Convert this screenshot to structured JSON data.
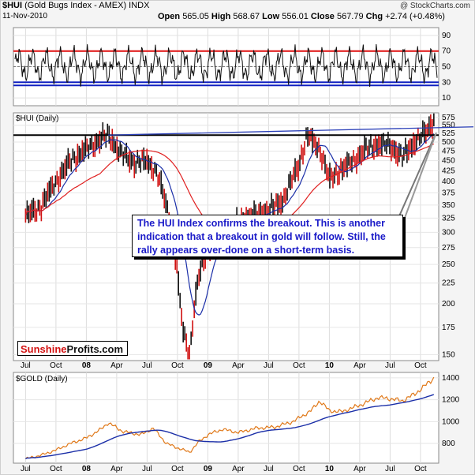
{
  "header": {
    "symbol": "$HUI",
    "name": "(Gold Bugs Index - AMEX) INDX",
    "date": "11-Nov-2010",
    "watermark": "@ StockCharts.com",
    "open_label": "Open",
    "open": "565.05",
    "high_label": "High",
    "high": "568.67",
    "low_label": "Low",
    "low": "556.01",
    "close_label": "Close",
    "close": "567.79",
    "chg_label": "Chg",
    "chg": "+2.74 (+0.48%)"
  },
  "annotation": "The HUI Index confirms the breakout. This is another indication that a breakout in gold will follow. Still, the rally appears over-done on a short-term basis.",
  "logo": {
    "part1": "Sunshine",
    "part2": "Profits.com"
  },
  "colors": {
    "price_up": "#111111",
    "price_down": "#d01010",
    "ma_fast": "#1b2fa8",
    "ma_slow": "#e02020",
    "gold": "#e07818",
    "rsi_upper": "#e01010",
    "rsi_lower": "#1020c0",
    "trend_line": "#2a3fb8",
    "annotation_text": "#1a1ac8"
  },
  "x_ticks": [
    "Jul",
    "Oct",
    "08",
    "Apr",
    "Jul",
    "Oct",
    "09",
    "Apr",
    "Jul",
    "Oct",
    "10",
    "Apr",
    "Jul",
    "Oct"
  ],
  "chart_data": [
    {
      "type": "line",
      "panel": "rsi",
      "title": "",
      "ylim": [
        0,
        100
      ],
      "y_ticks": [
        10,
        30,
        50,
        70,
        90
      ],
      "upper_band": 70,
      "lower_band": 30,
      "mid_dashed": 50,
      "grid": true
    },
    {
      "type": "candlestick",
      "panel": "price",
      "title": "$HUI (Daily)",
      "scale": "log",
      "ylim": [
        145,
        590
      ],
      "y_ticks": [
        150,
        175,
        200,
        225,
        250,
        275,
        300,
        325,
        350,
        375,
        400,
        425,
        450,
        475,
        500,
        525,
        550,
        575
      ],
      "horizontal_resistance": 520,
      "series": [
        {
          "name": "",
          "x": [
            2007.5,
            2007.62,
            2007.75,
            2007.87,
            2008.0,
            2008.12,
            2008.18,
            2008.28,
            2008.4,
            2008.5,
            2008.58,
            2008.66,
            2008.74,
            2008.79,
            2008.85,
            2008.92,
            2009.0,
            2009.12,
            2009.25,
            2009.37,
            2009.5,
            2009.62,
            2009.75,
            2009.82,
            2009.92,
            2010.0,
            2010.1,
            2010.2,
            2010.3,
            2010.4,
            2010.5,
            2010.6,
            2010.7,
            2010.8,
            2010.86
          ],
          "close": [
            330,
            345,
            400,
            450,
            480,
            510,
            520,
            470,
            445,
            450,
            420,
            350,
            250,
            175,
            150,
            230,
            275,
            280,
            320,
            330,
            340,
            360,
            440,
            520,
            480,
            405,
            430,
            450,
            480,
            495,
            490,
            460,
            500,
            530,
            568
          ]
        }
      ]
    },
    {
      "type": "line",
      "panel": "gold",
      "title": "$GOLD (Daily)",
      "ylim": [
        620,
        1450
      ],
      "y_ticks": [
        800,
        1000,
        1200,
        1400
      ],
      "series": [
        {
          "name": "",
          "x": [
            2007.5,
            2007.62,
            2007.75,
            2007.87,
            2008.0,
            2008.12,
            2008.18,
            2008.3,
            2008.45,
            2008.55,
            2008.66,
            2008.75,
            2008.85,
            2008.92,
            2009.0,
            2009.12,
            2009.25,
            2009.4,
            2009.55,
            2009.7,
            2009.85,
            2009.92,
            2010.0,
            2010.1,
            2010.25,
            2010.4,
            2010.5,
            2010.6,
            2010.7,
            2010.8,
            2010.86
          ],
          "values": [
            660,
            690,
            740,
            800,
            850,
            930,
            990,
            910,
            880,
            940,
            800,
            760,
            720,
            810,
            880,
            930,
            900,
            940,
            950,
            1000,
            1100,
            1190,
            1100,
            1090,
            1150,
            1220,
            1210,
            1190,
            1250,
            1340,
            1400
          ]
        }
      ]
    }
  ]
}
